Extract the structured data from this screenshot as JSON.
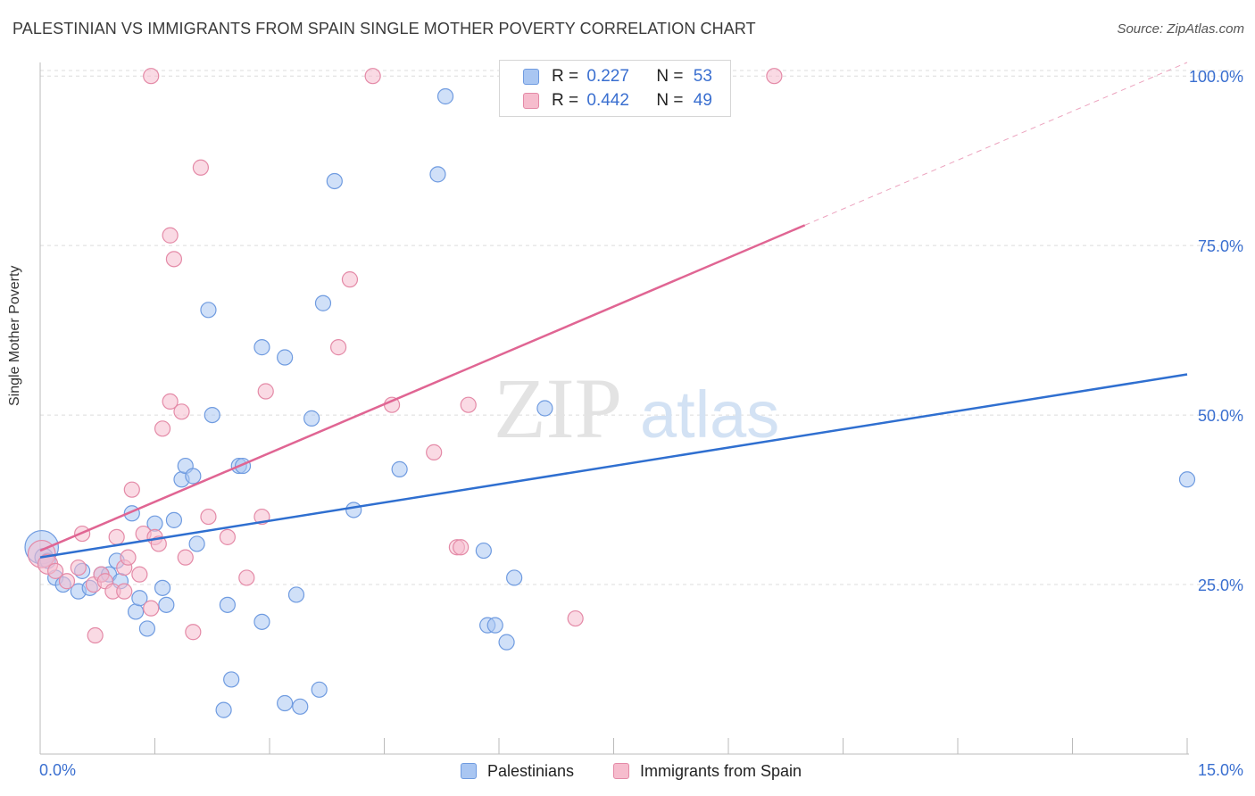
{
  "title": "PALESTINIAN VS IMMIGRANTS FROM SPAIN SINGLE MOTHER POVERTY CORRELATION CHART",
  "source": "Source: ZipAtlas.com",
  "watermark": {
    "zip": "ZIP",
    "atlas": "atlas"
  },
  "legend_stats": [
    {
      "r_label": "R = ",
      "r_value": "0.227",
      "n_label": "N = ",
      "n_value": "53",
      "color": "#a9c6f2",
      "border": "#6f9be0"
    },
    {
      "r_label": "R = ",
      "r_value": "0.442",
      "n_label": "N = ",
      "n_value": "49",
      "color": "#f6bccd",
      "border": "#e48aa7"
    }
  ],
  "chart_data": {
    "type": "scatter",
    "title": "PALESTINIAN VS IMMIGRANTS FROM SPAIN SINGLE MOTHER POVERTY CORRELATION CHART",
    "xlabel": "",
    "ylabel": "Single Mother Poverty",
    "xlim": [
      0,
      15
    ],
    "ylim": [
      0,
      102
    ],
    "x_tick_labels": [
      "0.0%",
      "15.0%"
    ],
    "y_tick_labels": [
      "25.0%",
      "50.0%",
      "75.0%",
      "100.0%"
    ],
    "y_ticks": [
      25,
      50,
      75,
      100
    ],
    "grid": true,
    "legend": "bottom-center",
    "series": [
      {
        "name": "Palestinians",
        "color": "#a9c6f2",
        "stroke": "#6f9be0",
        "line_color": "#2f6fd0",
        "trend": {
          "x0": 0,
          "y0": 29,
          "x1": 15,
          "y1": 56
        },
        "points": [
          [
            0.02,
            30.5,
            2.2
          ],
          [
            0.05,
            29,
            1.2
          ],
          [
            0.1,
            28.5,
            1
          ],
          [
            0.2,
            26,
            1
          ],
          [
            0.3,
            25,
            1
          ],
          [
            0.5,
            24,
            1
          ],
          [
            0.55,
            27,
            1
          ],
          [
            0.65,
            24.5,
            1
          ],
          [
            0.8,
            26.5,
            1
          ],
          [
            0.9,
            26.5,
            1
          ],
          [
            1.0,
            28.5,
            1
          ],
          [
            1.05,
            25.5,
            1
          ],
          [
            1.2,
            35.5,
            1
          ],
          [
            1.25,
            21,
            1
          ],
          [
            1.3,
            23,
            1
          ],
          [
            1.4,
            18.5,
            1
          ],
          [
            1.5,
            34,
            1
          ],
          [
            1.6,
            24.5,
            1
          ],
          [
            1.65,
            22,
            1
          ],
          [
            1.75,
            34.5,
            1
          ],
          [
            1.85,
            40.5,
            1
          ],
          [
            1.9,
            42.5,
            1
          ],
          [
            2.0,
            41,
            1
          ],
          [
            2.05,
            31,
            1
          ],
          [
            2.2,
            65.5,
            1
          ],
          [
            2.25,
            50,
            1
          ],
          [
            2.45,
            22,
            1
          ],
          [
            2.4,
            6.5,
            1
          ],
          [
            2.5,
            11,
            1
          ],
          [
            2.6,
            42.5,
            1
          ],
          [
            2.65,
            42.5,
            1
          ],
          [
            2.9,
            60,
            1
          ],
          [
            2.9,
            19.5,
            1
          ],
          [
            3.2,
            58.5,
            1
          ],
          [
            3.2,
            7.5,
            1
          ],
          [
            3.35,
            23.5,
            1
          ],
          [
            3.4,
            7,
            1
          ],
          [
            3.55,
            49.5,
            1
          ],
          [
            3.65,
            9.5,
            1
          ],
          [
            3.7,
            66.5,
            1
          ],
          [
            3.85,
            84.5,
            1
          ],
          [
            4.1,
            36,
            1
          ],
          [
            4.7,
            42,
            1
          ],
          [
            5.2,
            85.5,
            1
          ],
          [
            5.3,
            97,
            1
          ],
          [
            5.8,
            30,
            1
          ],
          [
            5.85,
            19,
            1
          ],
          [
            5.95,
            19,
            1
          ],
          [
            6.1,
            16.5,
            1
          ],
          [
            6.2,
            26,
            1
          ],
          [
            6.6,
            51,
            1
          ],
          [
            15.0,
            40.5,
            1
          ]
        ]
      },
      {
        "name": "Immigrants from Spain",
        "color": "#f6bccd",
        "stroke": "#e48aa7",
        "line_color": "#e06593",
        "trend": {
          "x0": 0,
          "y0": 30,
          "x1": 10,
          "y1": 78
        },
        "trend_dashed": {
          "x0": 10,
          "y0": 78,
          "x1": 15,
          "y1": 102
        },
        "points": [
          [
            0.02,
            29.5,
            1.8
          ],
          [
            0.1,
            28,
            1.3
          ],
          [
            0.2,
            27,
            1
          ],
          [
            0.35,
            25.5,
            1
          ],
          [
            0.5,
            27.5,
            1
          ],
          [
            0.55,
            32.5,
            1
          ],
          [
            0.7,
            25,
            1
          ],
          [
            0.72,
            17.5,
            1
          ],
          [
            0.8,
            26.5,
            1
          ],
          [
            0.85,
            25.5,
            1
          ],
          [
            0.95,
            24,
            1
          ],
          [
            1.0,
            32,
            1
          ],
          [
            1.1,
            27.5,
            1
          ],
          [
            1.1,
            24,
            1
          ],
          [
            1.15,
            29,
            1
          ],
          [
            1.2,
            39,
            1
          ],
          [
            1.3,
            26.5,
            1
          ],
          [
            1.35,
            32.5,
            1
          ],
          [
            1.45,
            21.5,
            1
          ],
          [
            1.45,
            100,
            1
          ],
          [
            1.5,
            32,
            1
          ],
          [
            1.55,
            31,
            1
          ],
          [
            1.6,
            48,
            1
          ],
          [
            1.7,
            52,
            1
          ],
          [
            1.7,
            76.5,
            1
          ],
          [
            1.75,
            73,
            1
          ],
          [
            1.85,
            50.5,
            1
          ],
          [
            1.9,
            29,
            1
          ],
          [
            2.0,
            18,
            1
          ],
          [
            2.1,
            86.5,
            1
          ],
          [
            2.2,
            35,
            1
          ],
          [
            2.45,
            32,
            1
          ],
          [
            2.7,
            26,
            1
          ],
          [
            2.9,
            35,
            1
          ],
          [
            2.95,
            53.5,
            1
          ],
          [
            3.9,
            60,
            1
          ],
          [
            4.05,
            70,
            1
          ],
          [
            4.35,
            100,
            1
          ],
          [
            4.6,
            51.5,
            1
          ],
          [
            5.15,
            44.5,
            1
          ],
          [
            5.45,
            30.5,
            1
          ],
          [
            5.5,
            30.5,
            1
          ],
          [
            5.6,
            51.5,
            1
          ],
          [
            7.0,
            20,
            1
          ],
          [
            9.6,
            100,
            1
          ]
        ]
      }
    ]
  }
}
